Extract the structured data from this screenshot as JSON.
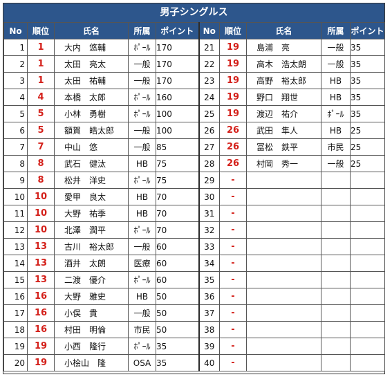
{
  "title": "男子シングルス",
  "headers": {
    "no": "No",
    "rank": "順位",
    "name": "氏名",
    "affiliation": "所属",
    "points": "ポイント"
  },
  "left_rows": [
    {
      "no": "1",
      "rank": "1",
      "name": "大内　悠輔",
      "aff": "ﾎﾟｰﾙ",
      "points": "170"
    },
    {
      "no": "2",
      "rank": "1",
      "name": "太田　亮太",
      "aff": "一般",
      "points": "170"
    },
    {
      "no": "3",
      "rank": "1",
      "name": "太田　祐輔",
      "aff": "一般",
      "points": "170"
    },
    {
      "no": "4",
      "rank": "4",
      "name": "本橋　太郎",
      "aff": "ﾎﾟｰﾙ",
      "points": "160"
    },
    {
      "no": "5",
      "rank": "5",
      "name": "小林　勇樹",
      "aff": "ﾎﾟｰﾙ",
      "points": "100"
    },
    {
      "no": "6",
      "rank": "5",
      "name": "額賀　皓太郎",
      "aff": "一般",
      "points": "100"
    },
    {
      "no": "7",
      "rank": "7",
      "name": "中山　悠",
      "aff": "一般",
      "points": "85"
    },
    {
      "no": "8",
      "rank": "8",
      "name": "武石　健汰",
      "aff": "HB",
      "points": "75"
    },
    {
      "no": "9",
      "rank": "8",
      "name": "松井　洋史",
      "aff": "ﾎﾟｰﾙ",
      "points": "75"
    },
    {
      "no": "10",
      "rank": "10",
      "name": "愛甲　良太",
      "aff": "HB",
      "points": "70"
    },
    {
      "no": "11",
      "rank": "10",
      "name": "大野　祐季",
      "aff": "HB",
      "points": "70"
    },
    {
      "no": "12",
      "rank": "10",
      "name": "北澤　潤平",
      "aff": "ﾎﾟｰﾙ",
      "points": "70"
    },
    {
      "no": "13",
      "rank": "13",
      "name": "古川　裕太郎",
      "aff": "一般",
      "points": "60"
    },
    {
      "no": "14",
      "rank": "13",
      "name": "酒井　太朗",
      "aff": "医療",
      "points": "60"
    },
    {
      "no": "15",
      "rank": "13",
      "name": "二渡　優介",
      "aff": "ﾎﾟｰﾙ",
      "points": "60"
    },
    {
      "no": "16",
      "rank": "16",
      "name": "大野　雅史",
      "aff": "HB",
      "points": "50"
    },
    {
      "no": "17",
      "rank": "16",
      "name": "小俣　貴",
      "aff": "一般",
      "points": "50"
    },
    {
      "no": "18",
      "rank": "16",
      "name": "村田　明倫",
      "aff": "市民",
      "points": "50"
    },
    {
      "no": "19",
      "rank": "19",
      "name": "小西　隆行",
      "aff": "ﾎﾟｰﾙ",
      "points": "35"
    },
    {
      "no": "20",
      "rank": "19",
      "name": "小桧山　隆",
      "aff": "OSA",
      "points": "35"
    }
  ],
  "right_rows": [
    {
      "no": "21",
      "rank": "19",
      "name": "島浦　亮",
      "aff": "一般",
      "points": "35"
    },
    {
      "no": "22",
      "rank": "19",
      "name": "高木　浩太朗",
      "aff": "一般",
      "points": "35"
    },
    {
      "no": "23",
      "rank": "19",
      "name": "高野　裕太郎",
      "aff": "HB",
      "points": "35"
    },
    {
      "no": "24",
      "rank": "19",
      "name": "野口　翔世",
      "aff": "HB",
      "points": "35"
    },
    {
      "no": "25",
      "rank": "19",
      "name": "渡辺　祐介",
      "aff": "ﾎﾟｰﾙ",
      "points": "35"
    },
    {
      "no": "26",
      "rank": "26",
      "name": "武田　隼人",
      "aff": "HB",
      "points": "25"
    },
    {
      "no": "27",
      "rank": "26",
      "name": "冨松　鉄平",
      "aff": "市民",
      "points": "25"
    },
    {
      "no": "28",
      "rank": "26",
      "name": "村岡　秀一",
      "aff": "一般",
      "points": "25"
    },
    {
      "no": "29",
      "rank": "-",
      "name": "",
      "aff": "",
      "points": ""
    },
    {
      "no": "30",
      "rank": "-",
      "name": "",
      "aff": "",
      "points": ""
    },
    {
      "no": "31",
      "rank": "-",
      "name": "",
      "aff": "",
      "points": ""
    },
    {
      "no": "32",
      "rank": "-",
      "name": "",
      "aff": "",
      "points": ""
    },
    {
      "no": "33",
      "rank": "-",
      "name": "",
      "aff": "",
      "points": ""
    },
    {
      "no": "34",
      "rank": "-",
      "name": "",
      "aff": "",
      "points": ""
    },
    {
      "no": "35",
      "rank": "-",
      "name": "",
      "aff": "",
      "points": ""
    },
    {
      "no": "36",
      "rank": "-",
      "name": "",
      "aff": "",
      "points": ""
    },
    {
      "no": "37",
      "rank": "-",
      "name": "",
      "aff": "",
      "points": ""
    },
    {
      "no": "38",
      "rank": "-",
      "name": "",
      "aff": "",
      "points": ""
    },
    {
      "no": "39",
      "rank": "-",
      "name": "",
      "aff": "",
      "points": ""
    },
    {
      "no": "40",
      "rank": "-",
      "name": "",
      "aff": "",
      "points": ""
    }
  ],
  "colors": {
    "header_bg": "#2d568c",
    "rank_text": "#d4201a",
    "points_bg": "#fbe4d5"
  }
}
